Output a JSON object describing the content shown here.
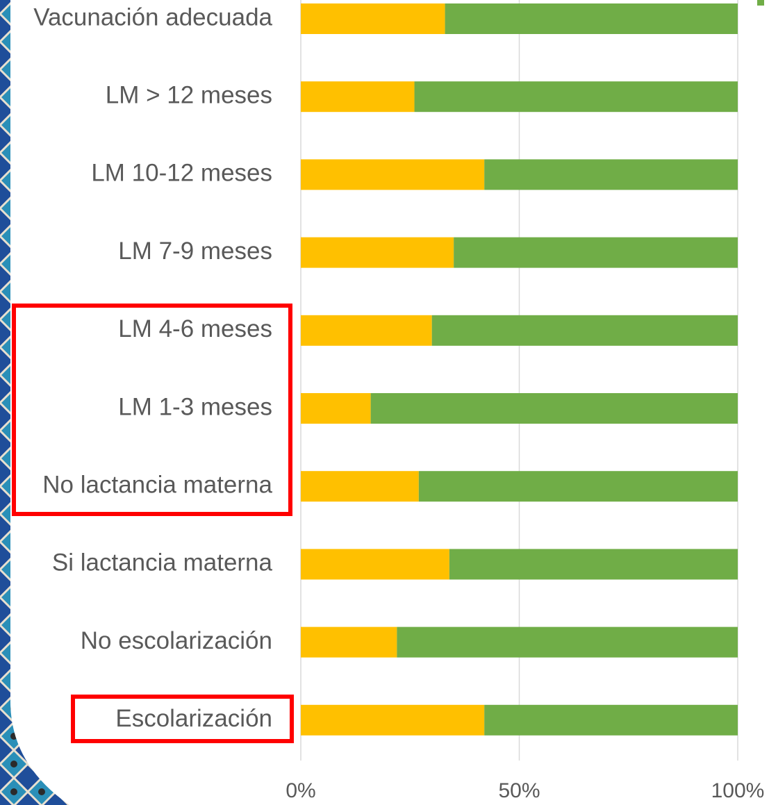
{
  "chart_data": {
    "type": "stacked_barh",
    "categories": [
      "Vacunación adecuada",
      "LM > 12 meses",
      "LM 10-12 meses",
      "LM 7-9 meses",
      "LM 4-6 meses",
      "LM 1-3 meses",
      "No lactancia materna",
      "Si lactancia materna",
      "No escolarización",
      "Escolarización"
    ],
    "series": [
      {
        "color": "#ffc000",
        "values": [
          33,
          26,
          42,
          35,
          30,
          16,
          27,
          34,
          22,
          42
        ]
      },
      {
        "color": "#70ad47",
        "values": [
          67,
          74,
          58,
          65,
          70,
          84,
          73,
          66,
          78,
          58
        ]
      }
    ],
    "xlim": [
      0,
      100
    ],
    "xticks": [
      {
        "value": 0,
        "label": "0%"
      },
      {
        "value": 50,
        "label": "50%"
      },
      {
        "value": 100,
        "label": "100%"
      }
    ],
    "grid": true
  }
}
